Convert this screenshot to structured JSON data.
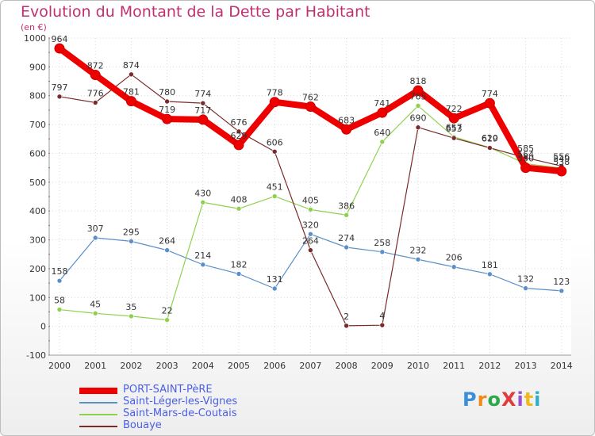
{
  "title": "Evolution du Montant de la Dette par Habitant",
  "unit_label": "(en €)",
  "logo_text": "ProXiti",
  "chart_data": {
    "type": "line",
    "title": "Evolution du Montant de la Dette par Habitant",
    "ylabel": "(en €)",
    "xlabel": "",
    "categories": [
      "2000",
      "2001",
      "2002",
      "2003",
      "2004",
      "2005",
      "2006",
      "2007",
      "2008",
      "2009",
      "2010",
      "2011",
      "2012",
      "2013",
      "2014"
    ],
    "ylim": [
      -100,
      1000
    ],
    "yticks": [
      -100,
      0,
      100,
      200,
      300,
      400,
      500,
      600,
      700,
      800,
      900,
      1000
    ],
    "grid": true,
    "legend_position": "bottom-left",
    "series": [
      {
        "name": "Saint-Léger-les-Vignes",
        "color": "#5b8fc9",
        "width": 1.2,
        "values": [
          158,
          307,
          295,
          264,
          214,
          182,
          131,
          320,
          274,
          258,
          232,
          206,
          181,
          132,
          123
        ],
        "labels": [
          "158",
          "307",
          "295",
          "264",
          "214",
          "182",
          "131",
          "320",
          "274",
          "258",
          "232",
          "206",
          "181",
          "132",
          "123"
        ]
      },
      {
        "name": "Saint-Mars-de-Coutais",
        "color": "#8fd14f",
        "width": 1.2,
        "values": [
          58,
          45,
          35,
          22,
          430,
          408,
          451,
          405,
          386,
          640,
          765,
          657,
          620,
          564,
          549
        ],
        "labels": [
          "58",
          "45",
          "35",
          "22",
          "430",
          "408",
          "451",
          "405",
          "386",
          "640",
          "765",
          "657",
          "620",
          "564",
          "549"
        ]
      },
      {
        "name": "Bouaye",
        "color": "#7a2a2a",
        "width": 1.2,
        "values": [
          797,
          776,
          874,
          780,
          774,
          676,
          606,
          264,
          2,
          4,
          690,
          653,
          619,
          585,
          556
        ],
        "labels": [
          "797",
          "776",
          "874",
          "780",
          "774",
          "676",
          "606",
          "264",
          "2",
          "4",
          "690",
          "653",
          "619",
          "585",
          "556"
        ]
      },
      {
        "name": "PORT-SAINT-PèRE",
        "color": "#ee0000",
        "width": 8,
        "values": [
          964,
          872,
          781,
          719,
          717,
          629,
          778,
          762,
          683,
          741,
          818,
          722,
          774,
          550,
          538
        ],
        "labels": [
          "964",
          "872",
          "781",
          "719",
          "717",
          "629",
          "778",
          "762",
          "683",
          "741",
          "818",
          "722",
          "774",
          "550",
          "538"
        ]
      }
    ],
    "legend": [
      "PORT-SAINT-PèRE",
      "Saint-Léger-les-Vignes",
      "Saint-Mars-de-Coutais",
      "Bouaye"
    ]
  }
}
